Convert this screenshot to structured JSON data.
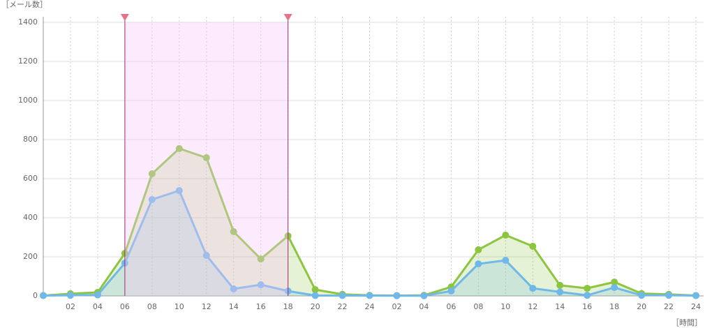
{
  "chart_data": {
    "type": "area",
    "y_label": "［メール数］",
    "x_label": "［時間］",
    "x": [
      0,
      2,
      4,
      6,
      8,
      10,
      12,
      14,
      16,
      18,
      20,
      22,
      24,
      26,
      28,
      30,
      32,
      34,
      36,
      38,
      40,
      42,
      44,
      46,
      48
    ],
    "xlim": [
      0,
      48
    ],
    "xticks": [
      {
        "value": 2,
        "label": "02"
      },
      {
        "value": 4,
        "label": "04"
      },
      {
        "value": 6,
        "label": "06"
      },
      {
        "value": 8,
        "label": "08"
      },
      10,
      12,
      14,
      16,
      18,
      20,
      22,
      24,
      {
        "value": 26,
        "label": "02"
      },
      {
        "value": 28,
        "label": "04"
      },
      {
        "value": 30,
        "label": "06"
      },
      {
        "value": 32,
        "label": "08"
      },
      {
        "value": 34,
        "label": "10"
      },
      {
        "value": 36,
        "label": "12"
      },
      {
        "value": 38,
        "label": "14"
      },
      {
        "value": 40,
        "label": "16"
      },
      {
        "value": 42,
        "label": "18"
      },
      {
        "value": 44,
        "label": "20"
      },
      {
        "value": 46,
        "label": "22"
      },
      {
        "value": 48,
        "label": "24"
      }
    ],
    "ylim": [
      0,
      1400
    ],
    "yticks": [
      0,
      200,
      400,
      600,
      800,
      1000,
      1200,
      1400
    ],
    "grid": true,
    "highlight": [
      6,
      18
    ],
    "highlight_color": "#f5c6f5",
    "series": [
      {
        "color": "#8cc63f",
        "values": [
          2,
          11,
          18,
          218,
          625,
          754,
          707,
          329,
          189,
          307,
          32,
          8,
          3,
          2,
          3,
          46,
          236,
          311,
          254,
          54,
          39,
          71,
          12,
          8,
          2
        ]
      },
      {
        "color": "#6fb8e8",
        "values": [
          2,
          3,
          5,
          168,
          493,
          539,
          207,
          36,
          57,
          25,
          2,
          2,
          2,
          1,
          1,
          25,
          164,
          182,
          39,
          20,
          3,
          43,
          3,
          3,
          2
        ]
      }
    ]
  }
}
